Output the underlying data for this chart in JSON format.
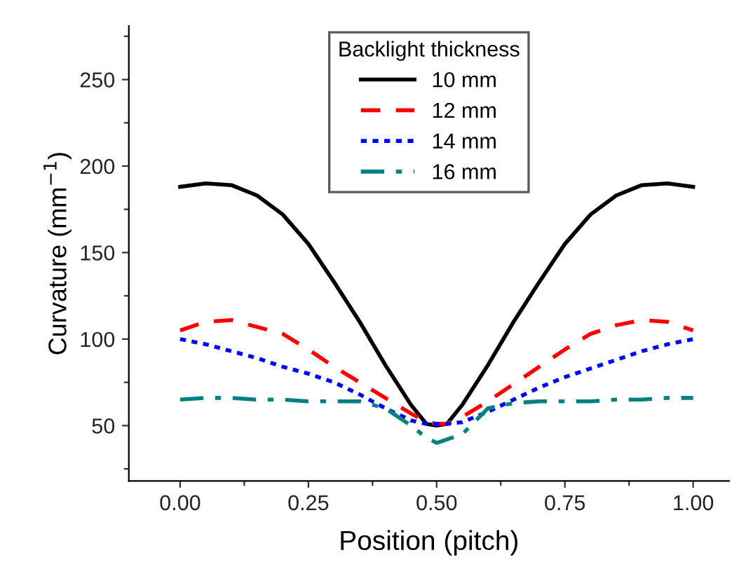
{
  "chart_data": {
    "type": "line",
    "xlabel": "Position (pitch)",
    "ylabel": "Curvature (mm$^{−1}$)",
    "legend_title": "Backlight thickness",
    "legend": "top",
    "grid": false,
    "xlim": [
      -0.1,
      1.07
    ],
    "ylim": [
      18,
      281
    ],
    "xticks": [
      {
        "value": 0,
        "label": "0.00"
      },
      {
        "value": 0.125,
        "label": null
      },
      {
        "value": 0.25,
        "label": "0.25"
      },
      {
        "value": 0.375,
        "label": null
      },
      {
        "value": 0.5,
        "label": "0.50"
      },
      {
        "value": 0.625,
        "label": null
      },
      {
        "value": 0.75,
        "label": "0.75"
      },
      {
        "value": 0.875,
        "label": null
      },
      {
        "value": 1,
        "label": "1.00"
      }
    ],
    "yticks": [
      {
        "value": 25,
        "label": null
      },
      50,
      {
        "value": 75,
        "label": null
      },
      100,
      {
        "value": 125,
        "label": null
      },
      150,
      {
        "value": 175,
        "label": null
      },
      200,
      {
        "value": 225,
        "label": null
      },
      250,
      {
        "value": 275,
        "label": null
      }
    ],
    "x": [
      0,
      0.05,
      0.1,
      0.15,
      0.2,
      0.25,
      0.3,
      0.35,
      0.4,
      0.45,
      0.48,
      0.5,
      0.52,
      0.55,
      0.6,
      0.65,
      0.7,
      0.75,
      0.8,
      0.85,
      0.9,
      0.95,
      1
    ],
    "series": [
      {
        "name": "10 mm",
        "color": "#000000",
        "line_style": "solid",
        "values": [
          188,
          190,
          189,
          183,
          172,
          155,
          133,
          110,
          85,
          62,
          51,
          50,
          51,
          62,
          85,
          110,
          133,
          155,
          172,
          183,
          189,
          190,
          188
        ]
      },
      {
        "name": "12 mm",
        "color": "#ff0000",
        "line_style": "dashed",
        "values": [
          105,
          110,
          111,
          107,
          103,
          94,
          84,
          75,
          66,
          57,
          52,
          51,
          51,
          55,
          64,
          74,
          84,
          94,
          103,
          108,
          111,
          110,
          105
        ]
      },
      {
        "name": "14 mm",
        "color": "#0000ff",
        "line_style": "dotted",
        "values": [
          100,
          97,
          93,
          89,
          84,
          80,
          75,
          68,
          60,
          53,
          51,
          51,
          51,
          52,
          58,
          65,
          72,
          78,
          83,
          88,
          93,
          97,
          100
        ]
      },
      {
        "name": "16 mm",
        "color": "#008080",
        "line_style": "dashdot",
        "values": [
          65,
          66,
          66,
          65,
          65,
          64,
          64,
          64,
          60,
          50,
          43,
          40,
          42,
          45,
          60,
          63,
          64,
          64,
          64,
          65,
          65,
          66,
          66
        ]
      }
    ]
  }
}
